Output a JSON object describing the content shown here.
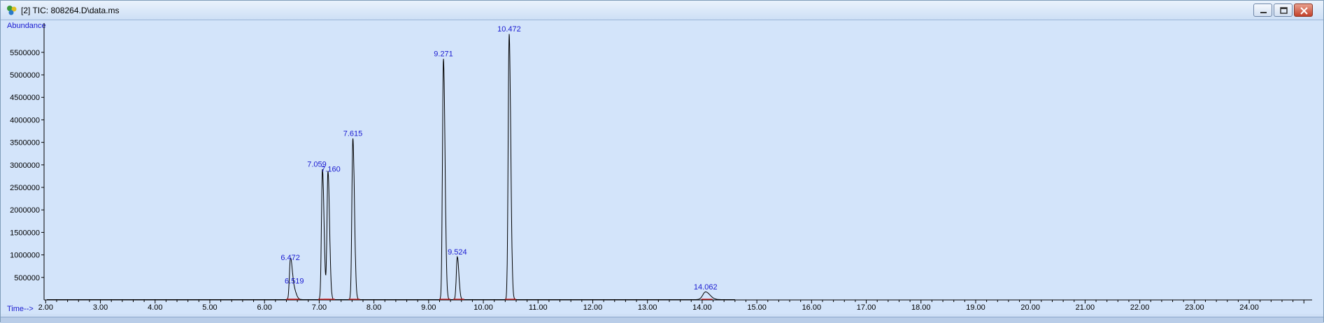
{
  "window": {
    "title": "[2] TIC: 808264.D\\data.ms",
    "buttons": [
      "minimize-icon",
      "restore-icon",
      "close-icon"
    ]
  },
  "colors": {
    "background": "#d3e4fa",
    "trace": "#000000",
    "label": "#1a1ad0",
    "baseline": "#d81818"
  },
  "chart_data": {
    "type": "line",
    "title": "",
    "ylabel": "Abundance",
    "xlabel": "Time-->",
    "xlim": [
      1.97,
      25.15
    ],
    "ylim": [
      0,
      6150000
    ],
    "x_ticks": [
      "2.00",
      "3.00",
      "4.00",
      "5.00",
      "6.00",
      "7.00",
      "8.00",
      "9.00",
      "10.00",
      "11.00",
      "12.00",
      "13.00",
      "14.00",
      "15.00",
      "16.00",
      "17.00",
      "18.00",
      "19.00",
      "20.00",
      "21.00",
      "22.00",
      "23.00",
      "24.00"
    ],
    "y_ticks": [
      "500000",
      "1000000",
      "1500000",
      "2000000",
      "2500000",
      "3000000",
      "3500000",
      "4000000",
      "4500000",
      "5000000",
      "5500000"
    ],
    "peaks": [
      {
        "label": "6.472",
        "rt": 6.472,
        "height": 820000
      },
      {
        "label": "6.519",
        "rt": 6.519,
        "height": 300000
      },
      {
        "label": "7.059",
        "rt": 7.059,
        "height": 2900000
      },
      {
        "label": "7.160",
        "rt": 7.16,
        "height": 2850000
      },
      {
        "label": "7.615",
        "rt": 7.615,
        "height": 3580000
      },
      {
        "label": "9.271",
        "rt": 9.271,
        "height": 5350000
      },
      {
        "label": "9.524",
        "rt": 9.524,
        "height": 950000
      },
      {
        "label": "10.472",
        "rt": 10.472,
        "height": 5900000
      },
      {
        "label": "14.062",
        "rt": 14.062,
        "height": 170000
      }
    ]
  }
}
